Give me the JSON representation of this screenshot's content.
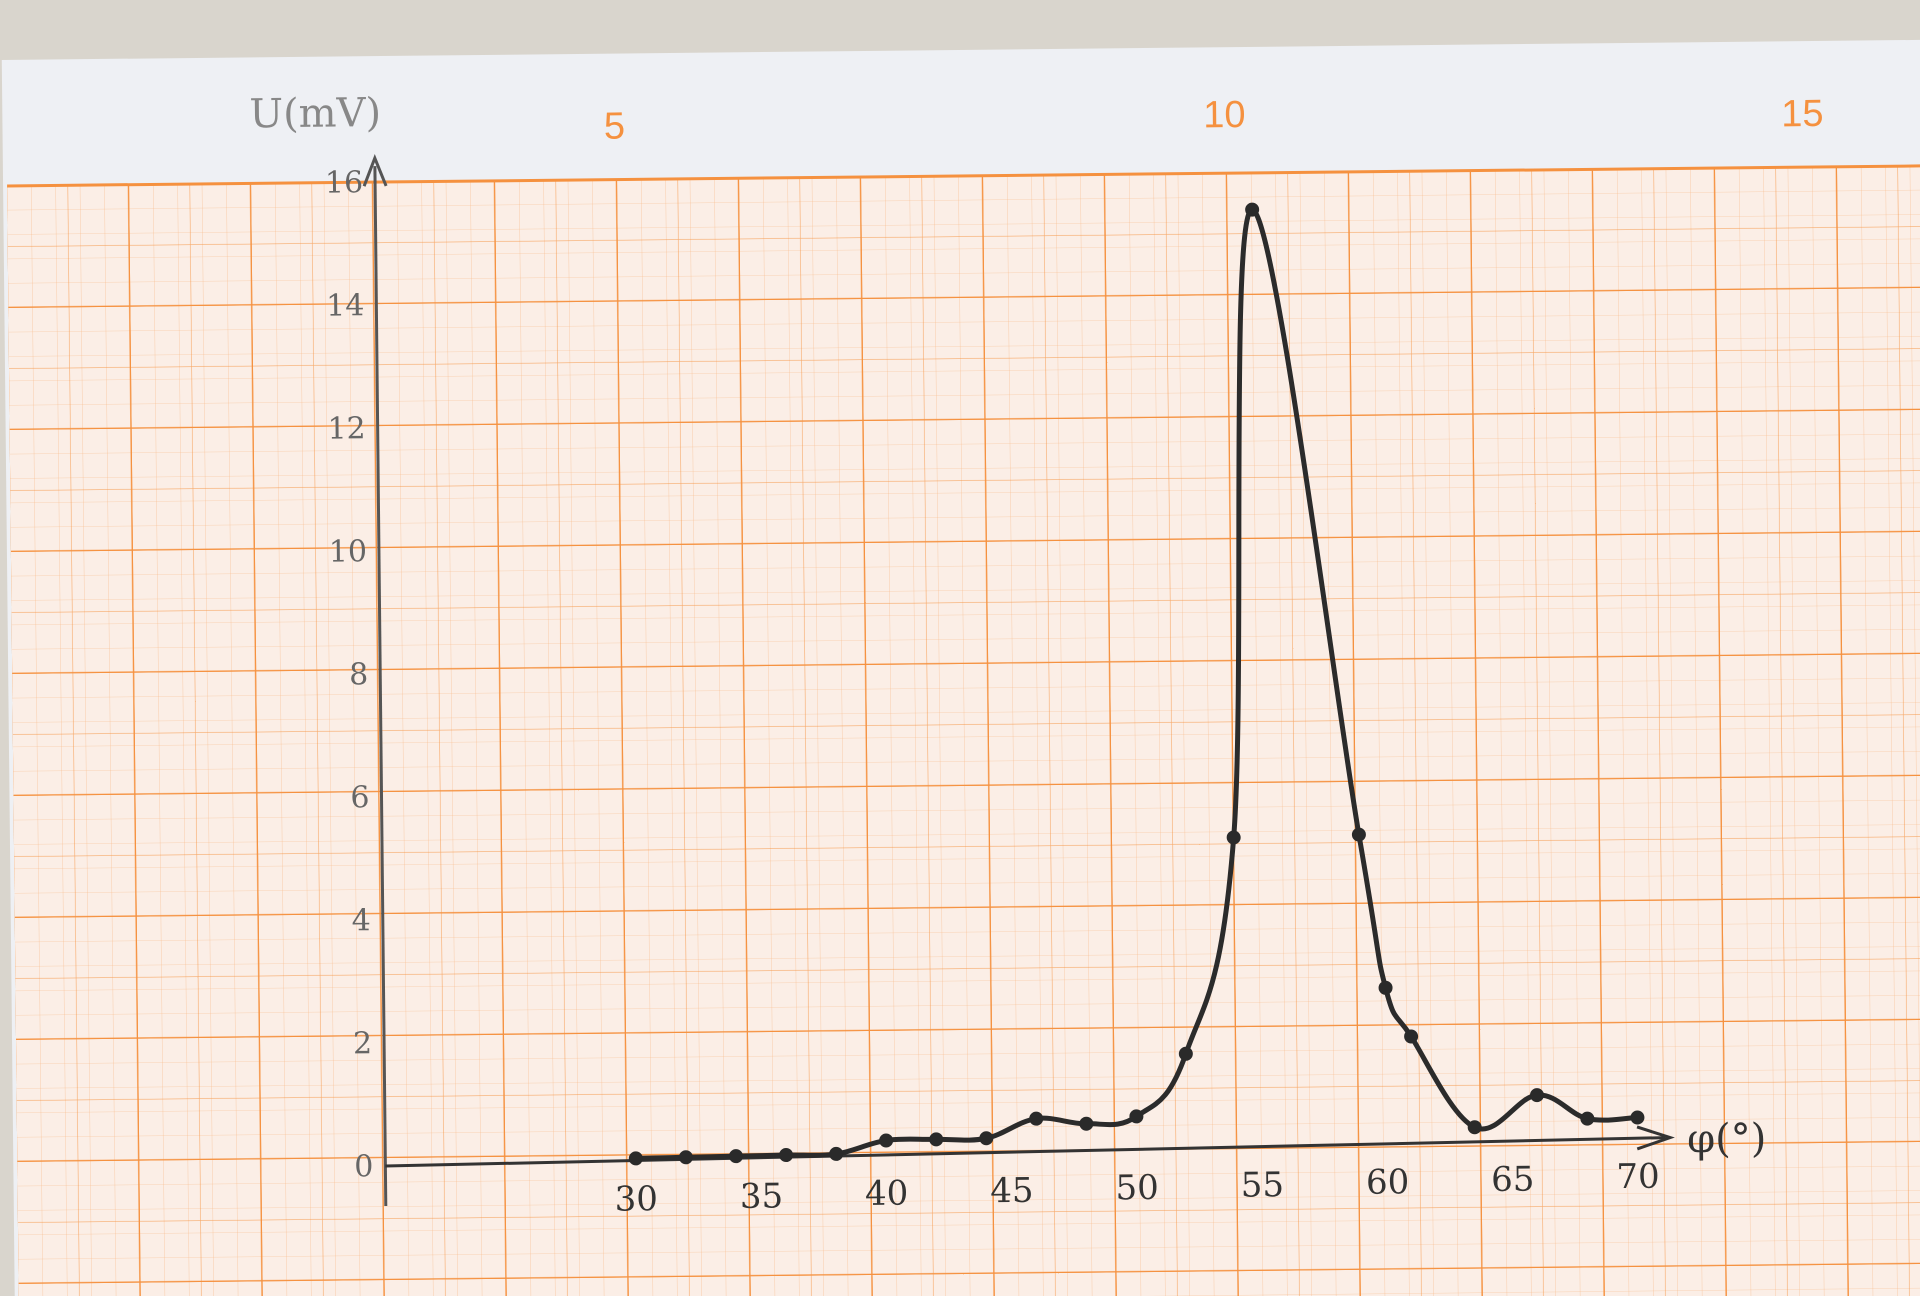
{
  "sheet": {
    "top_numbers": [
      "5",
      "10",
      "15"
    ],
    "grid_color": "#f5913f",
    "paper_color": "#fbeee6",
    "margin_color": "#eef0f4",
    "ink_color": "#2a2a2a"
  },
  "chart_data": {
    "type": "line",
    "xlabel": "φ(°)",
    "ylabel": "U(mV)",
    "xlim": [
      20,
      80
    ],
    "ylim": [
      0,
      16
    ],
    "x_ticks": [
      30,
      35,
      40,
      45,
      50,
      55,
      60,
      65,
      70
    ],
    "y_ticks": [
      0,
      2,
      4,
      6,
      8,
      10,
      12,
      14,
      16
    ],
    "x_tick_labels": [
      "30",
      "35",
      "40",
      "45",
      "50",
      "55",
      "60",
      "65",
      "70"
    ],
    "y_tick_labels": [
      "0",
      "2",
      "4",
      "6",
      "8",
      "10",
      "12",
      "14",
      "16"
    ],
    "grid": true,
    "points": [
      {
        "x": 30,
        "y": 0.0
      },
      {
        "x": 32,
        "y": 0.0
      },
      {
        "x": 34,
        "y": 0.0
      },
      {
        "x": 36,
        "y": 0.0
      },
      {
        "x": 38,
        "y": 0.0
      },
      {
        "x": 40,
        "y": 0.2
      },
      {
        "x": 42,
        "y": 0.2
      },
      {
        "x": 44,
        "y": 0.2
      },
      {
        "x": 46,
        "y": 0.5
      },
      {
        "x": 48,
        "y": 0.4
      },
      {
        "x": 50,
        "y": 0.5
      },
      {
        "x": 52,
        "y": 1.5
      },
      {
        "x": 54,
        "y": 5.0
      },
      {
        "x": 55,
        "y": 15.2
      },
      {
        "x": 59,
        "y": 5.0
      },
      {
        "x": 60,
        "y": 2.5
      },
      {
        "x": 61,
        "y": 1.7
      },
      {
        "x": 63.5,
        "y": 0.2
      },
      {
        "x": 66,
        "y": 0.7
      },
      {
        "x": 68,
        "y": 0.3
      },
      {
        "x": 70,
        "y": 0.3
      }
    ]
  }
}
